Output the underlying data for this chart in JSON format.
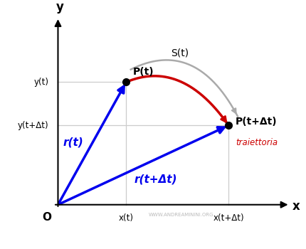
{
  "figsize": [
    4.3,
    3.5
  ],
  "dpi": 100,
  "bg_color": "#ffffff",
  "P1": [
    0.3,
    0.68
  ],
  "P2": [
    0.75,
    0.44
  ],
  "blue_color": "#0000ee",
  "red_color": "#cc0000",
  "gray_color": "#aaaaaa",
  "black_color": "#000000",
  "grid_color": "#cccccc",
  "label_Pt": "P(t)",
  "label_PDt": "P(t+Δt)",
  "label_rt": "r(t)",
  "label_rDt": "r(t+Δt)",
  "label_St": "S(t)",
  "label_traj": "traiettoria",
  "label_O": "O",
  "label_x": "x",
  "label_y": "y",
  "label_xt": "x(t)",
  "label_xDt": "x(t+Δt)",
  "label_yt": "y(t)",
  "label_yDt": "y(t+Δt)",
  "xlim": [
    -0.08,
    1.05
  ],
  "ylim": [
    -0.08,
    1.08
  ]
}
